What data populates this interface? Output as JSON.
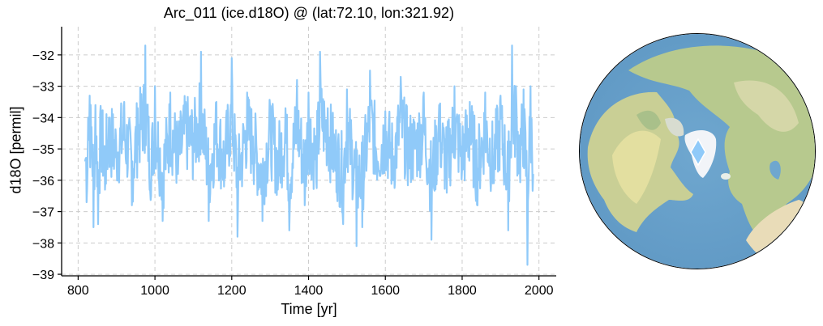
{
  "chart_data": {
    "type": "line",
    "title": "Arc_011 (ice.d18O) @ (lat:72.10, lon:321.92)",
    "xlabel": "Time [yr]",
    "ylabel": "d18O [permil]",
    "xlim": [
      757,
      2045
    ],
    "ylim": [
      -39.05,
      -31.1
    ],
    "xticks": [
      800,
      1000,
      1200,
      1400,
      1600,
      1800,
      2000
    ],
    "yticks": [
      -32,
      -33,
      -34,
      -35,
      -36,
      -37,
      -38,
      -39
    ],
    "ytick_labels": [
      "−32",
      "−33",
      "−34",
      "−35",
      "−36",
      "−37",
      "−38",
      "−39"
    ],
    "grid": true,
    "legend": null,
    "series": [
      {
        "name": "ice.d18O",
        "color": "#90CAF9",
        "x_range": [
          818,
          1985
        ],
        "mean": -35.0,
        "min": -38.7,
        "max": -31.7,
        "approx_points": [
          [
            818,
            -35.4
          ],
          [
            822,
            -36.7
          ],
          [
            826,
            -34.0
          ],
          [
            830,
            -33.3
          ],
          [
            835,
            -34.3
          ],
          [
            840,
            -37.5
          ],
          [
            845,
            -33.6
          ],
          [
            852,
            -37.4
          ],
          [
            860,
            -34.0
          ],
          [
            870,
            -36.3
          ],
          [
            880,
            -34.0
          ],
          [
            900,
            -35.3
          ],
          [
            920,
            -33.5
          ],
          [
            940,
            -36.8
          ],
          [
            955,
            -33.7
          ],
          [
            975,
            -31.7
          ],
          [
            990,
            -36.5
          ],
          [
            1000,
            -33.0
          ],
          [
            1020,
            -37.3
          ],
          [
            1040,
            -33.2
          ],
          [
            1060,
            -35.8
          ],
          [
            1080,
            -33.5
          ],
          [
            1100,
            -34.5
          ],
          [
            1120,
            -31.9
          ],
          [
            1140,
            -37.3
          ],
          [
            1160,
            -33.5
          ],
          [
            1180,
            -36.2
          ],
          [
            1200,
            -32.1
          ],
          [
            1215,
            -37.8
          ],
          [
            1240,
            -33.2
          ],
          [
            1255,
            -34.6
          ],
          [
            1280,
            -37.3
          ],
          [
            1300,
            -33.7
          ],
          [
            1320,
            -36.3
          ],
          [
            1340,
            -33.7
          ],
          [
            1350,
            -37.6
          ],
          [
            1370,
            -32.8
          ],
          [
            1390,
            -36.8
          ],
          [
            1400,
            -33.2
          ],
          [
            1420,
            -36.0
          ],
          [
            1430,
            -31.9
          ],
          [
            1450,
            -33.7
          ],
          [
            1470,
            -35.7
          ],
          [
            1490,
            -37.4
          ],
          [
            1500,
            -33.1
          ],
          [
            1525,
            -38.1
          ],
          [
            1540,
            -37.5
          ],
          [
            1560,
            -32.5
          ],
          [
            1580,
            -35.4
          ],
          [
            1600,
            -33.8
          ],
          [
            1620,
            -36.0
          ],
          [
            1640,
            -32.7
          ],
          [
            1660,
            -35.2
          ],
          [
            1680,
            -34.7
          ],
          [
            1700,
            -33.2
          ],
          [
            1720,
            -37.9
          ],
          [
            1740,
            -33.6
          ],
          [
            1760,
            -36.4
          ],
          [
            1780,
            -33.0
          ],
          [
            1800,
            -35.6
          ],
          [
            1820,
            -33.5
          ],
          [
            1840,
            -36.8
          ],
          [
            1860,
            -33.2
          ],
          [
            1880,
            -36.1
          ],
          [
            1900,
            -33.3
          ],
          [
            1920,
            -37.6
          ],
          [
            1930,
            -31.7
          ],
          [
            1940,
            -33.0
          ],
          [
            1950,
            -35.5
          ],
          [
            1960,
            -33.1
          ],
          [
            1970,
            -38.7
          ],
          [
            1978,
            -33.0
          ],
          [
            1985,
            -35.8
          ]
        ]
      }
    ]
  },
  "map": {
    "projection": "orthographic-north-polar",
    "marker": {
      "shape": "diamond",
      "color": "#90CAF9",
      "edge": "#ffffff",
      "lat": 72.1,
      "lon": 321.92
    }
  }
}
